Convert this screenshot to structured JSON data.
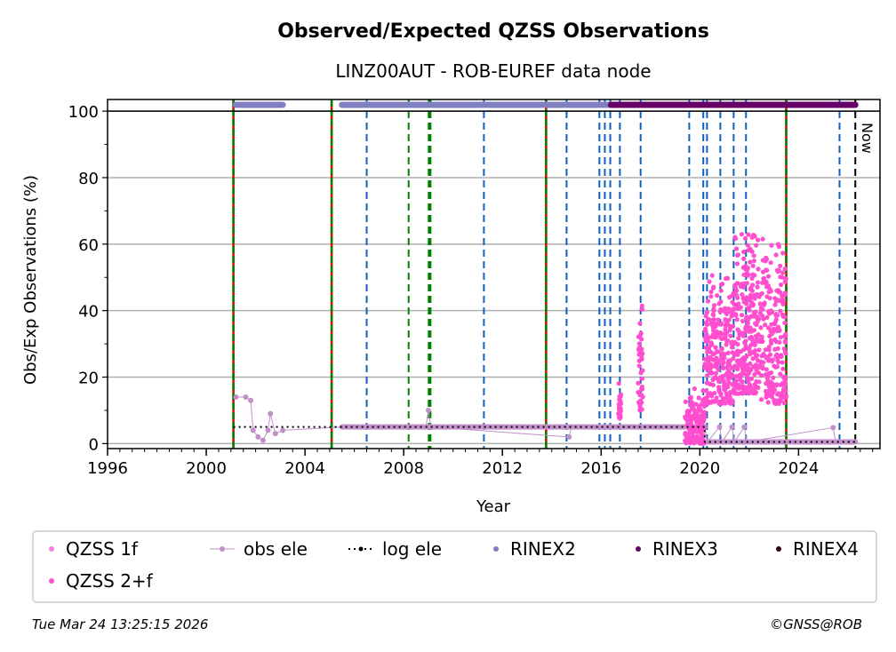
{
  "chart_data": {
    "type": "scatter",
    "title": "Observed/Expected QZSS Observations",
    "subtitle": "LINZ00AUT - ROB-EUREF data node",
    "xlabel": "Year",
    "ylabel": "Obs/Exp Observations (%)",
    "xlim": [
      1996,
      2027.3
    ],
    "ylim": [
      -1.5,
      103.5
    ],
    "xticks": [
      1996,
      2000,
      2004,
      2008,
      2012,
      2016,
      2020,
      2024
    ],
    "yticks": [
      0,
      20,
      40,
      60,
      80,
      100
    ],
    "grid": "y",
    "now_label": "Now",
    "now_year": 2026.3,
    "red_green_lines": [
      2001.1,
      2005.08,
      2013.77,
      2023.5
    ],
    "green_dashed_lines": [
      2008.2,
      2009.05
    ],
    "blue_dashed_lines": [
      2006.5,
      2011.25,
      2014.6,
      2015.93,
      2016.15,
      2016.37,
      2016.76,
      2017.6,
      2019.57,
      2020.14,
      2020.29,
      2020.83,
      2021.37,
      2021.87,
      2025.66
    ],
    "rinex_bars": [
      {
        "series": "RINEX2",
        "from": 2001.2,
        "to": 2003.1
      },
      {
        "series": "RINEX2",
        "from": 2005.5,
        "to": 2007.4
      },
      {
        "series": "RINEX2",
        "from": 2007.4,
        "to": 2016.4
      },
      {
        "series": "RINEX3",
        "from": 2016.4,
        "to": 2026.3
      }
    ],
    "log_ele": [
      [
        2001.1,
        5
      ],
      [
        2020.2,
        5
      ],
      [
        2020.2,
        0.5
      ],
      [
        2026.3,
        0.5
      ]
    ],
    "obs_ele": [
      [
        2001.2,
        14
      ],
      [
        2001.6,
        14
      ],
      [
        2001.8,
        13
      ],
      [
        2001.9,
        4
      ],
      [
        2002.1,
        2
      ],
      [
        2002.3,
        1
      ],
      [
        2002.5,
        4
      ],
      [
        2002.6,
        9
      ],
      [
        2002.8,
        3
      ],
      [
        2003.1,
        4
      ],
      [
        2005.5,
        5
      ],
      [
        2008.9,
        5
      ],
      [
        2009.0,
        10
      ],
      [
        2009.1,
        5
      ],
      [
        2014.7,
        2
      ],
      [
        2014.8,
        5
      ],
      [
        2019.5,
        5
      ],
      [
        2019.6,
        1
      ],
      [
        2020.2,
        5
      ],
      [
        2020.3,
        0.5
      ],
      [
        2020.8,
        5
      ],
      [
        2020.9,
        0.5
      ],
      [
        2021.3,
        5
      ],
      [
        2021.4,
        0.5
      ],
      [
        2021.8,
        5
      ],
      [
        2021.9,
        0.5
      ],
      [
        2025.4,
        4.8
      ],
      [
        2025.5,
        0.5
      ],
      [
        2026.3,
        0.5
      ]
    ],
    "qzss_2f_clusters": [
      {
        "x": [
          2016.7,
          2016.8
        ],
        "y": [
          7,
          22
        ],
        "n": 25
      },
      {
        "x": [
          2017.5,
          2017.7
        ],
        "y": [
          10,
          51
        ],
        "n": 40
      },
      {
        "x": [
          2019.4,
          2020.2
        ],
        "y": [
          0,
          17
        ],
        "n": 150
      },
      {
        "x": [
          2020.2,
          2021.4
        ],
        "y": [
          12,
          55
        ],
        "n": 260
      },
      {
        "x": [
          2021.4,
          2022.4
        ],
        "y": [
          15,
          69
        ],
        "n": 260
      },
      {
        "x": [
          2022.4,
          2023.5
        ],
        "y": [
          12,
          64
        ],
        "n": 220
      }
    ],
    "legend": {
      "placement": "bottom",
      "entries": [
        {
          "label": "QZSS 1f",
          "color": "#f67fe0"
        },
        {
          "label": "obs ele",
          "color": "#c38fc9"
        },
        {
          "label": "log ele",
          "color": "#000000"
        },
        {
          "label": "RINEX2",
          "color": "#8080c0"
        },
        {
          "label": "RINEX3",
          "color": "#660066"
        },
        {
          "label": "RINEX4",
          "color": "#33001a"
        },
        {
          "label": "QZSS 2+f",
          "color": "#ff4fcf"
        }
      ]
    }
  },
  "footer": {
    "timestamp": "Tue Mar 24 13:25:15 2026",
    "credit": "©GNSS@ROB"
  }
}
